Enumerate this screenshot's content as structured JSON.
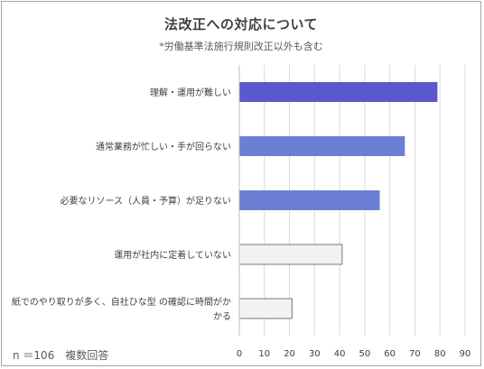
{
  "chart_data": {
    "type": "bar",
    "orientation": "horizontal",
    "title": "法改正への対応について",
    "subtitle": "*労働基準法施行規則改正以外も含む",
    "categories": [
      "理解・運用が難しい",
      "通常業務が忙しい・手が回らない",
      "必要なリソース（人員・予算）が足りない",
      "運用が社内に定着していない",
      "紙でのやり取りが多く、自社ひな型 の確認に時間がかかる"
    ],
    "category_lines": [
      [
        "理解・運用が難しい"
      ],
      [
        "通常業務が忙しい・手が回らない"
      ],
      [
        "必要なリソース（人員・予算）が足りない"
      ],
      [
        "運用が社内に定着していない"
      ],
      [
        "紙でのやり取りが多く、自社ひな型 の確認に時間がか",
        "かる"
      ]
    ],
    "values": [
      79,
      66,
      56,
      41,
      21
    ],
    "bar_colors": [
      "#5b57cc",
      "#6d7fd4",
      "#6d7fd4",
      "#f2f2f2",
      "#f2f2f2"
    ],
    "xlim": [
      0,
      90
    ],
    "xticks": [
      0,
      10,
      20,
      30,
      40,
      50,
      60,
      70,
      80,
      90
    ],
    "grid": true,
    "footnote": "n ＝106　複数回答"
  }
}
